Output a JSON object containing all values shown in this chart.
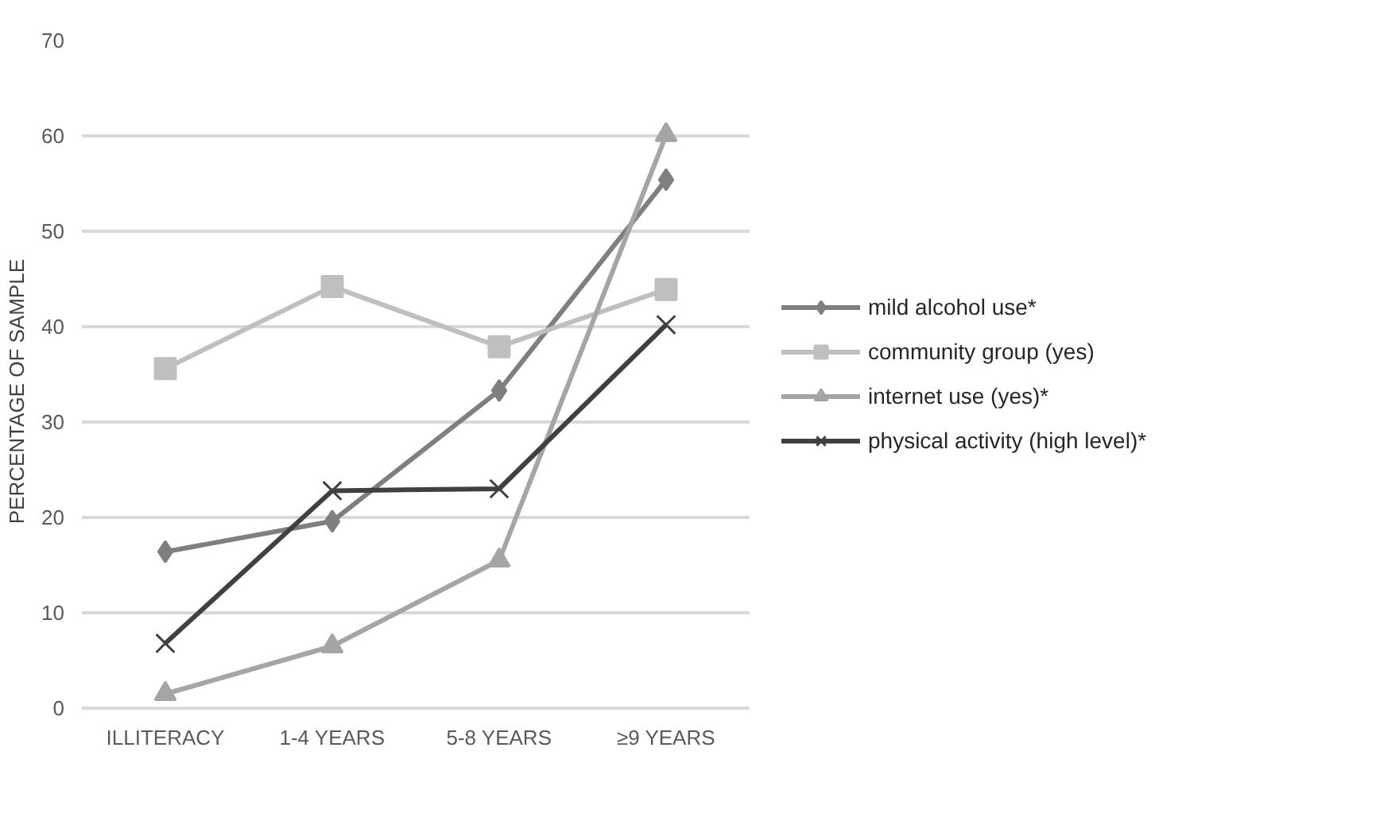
{
  "chart_data": {
    "type": "line",
    "ylabel": "PERCENTAGE    OF    SAMPLE",
    "categories": [
      "ILLITERACY",
      "1-4 YEARS",
      "5-8 YEARS",
      "≥9 YEARS"
    ],
    "series": [
      {
        "name": "mild alcohol use*",
        "color": "#7f7f7f",
        "marker": "diamond",
        "values": [
          16.4,
          19.6,
          33.3,
          55.4
        ]
      },
      {
        "name": "community group (yes)",
        "color": "#bfbfbf",
        "marker": "square",
        "values": [
          35.6,
          44.2,
          37.9,
          43.9
        ]
      },
      {
        "name": "internet use (yes)*",
        "color": "#a5a5a5",
        "marker": "triangle",
        "values": [
          1.5,
          6.5,
          15.5,
          60.1
        ]
      },
      {
        "name": "physical activity (high level)*",
        "color": "#404040",
        "marker": "cross",
        "values": [
          6.8,
          22.8,
          23.0,
          40.2
        ]
      }
    ],
    "ylim": [
      0,
      70
    ],
    "yticks": [
      0,
      10,
      20,
      30,
      40,
      50,
      60,
      70
    ],
    "grid": "y",
    "legend": "right"
  }
}
